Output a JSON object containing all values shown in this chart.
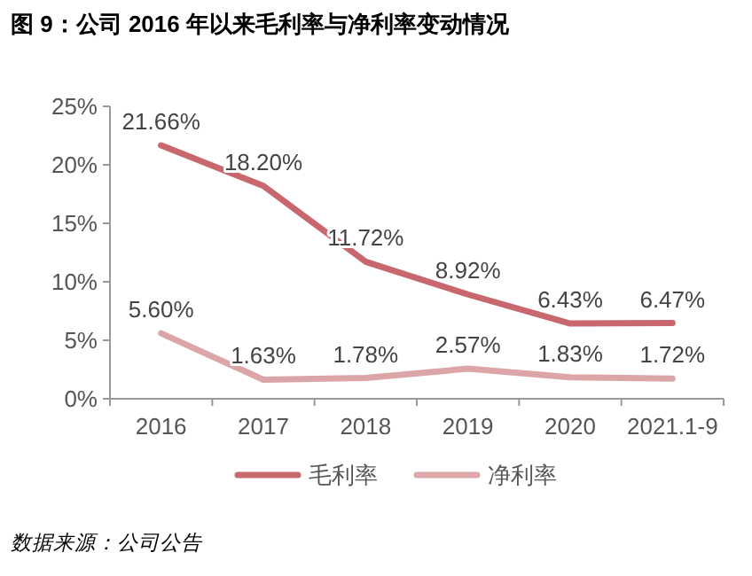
{
  "chart_data": {
    "type": "line",
    "title": "图 9：公司 2016 年以来毛利率与净利率变动情况",
    "categories": [
      "2016",
      "2017",
      "2018",
      "2019",
      "2020",
      "2021.1-9"
    ],
    "series": [
      {
        "name": "毛利率",
        "color": "#c8676d",
        "values": [
          21.66,
          18.2,
          11.72,
          8.92,
          6.43,
          6.47
        ],
        "value_labels": [
          "21.66%",
          "18.20%",
          "11.72%",
          "8.92%",
          "6.43%",
          "6.47%"
        ]
      },
      {
        "name": "净利率",
        "color": "#dca5a8",
        "values": [
          5.6,
          1.63,
          1.78,
          2.57,
          1.83,
          1.72
        ],
        "value_labels": [
          "5.60%",
          "1.63%",
          "1.78%",
          "2.57%",
          "1.83%",
          "1.72%"
        ]
      }
    ],
    "ylim": [
      0,
      25
    ],
    "yticks": [
      {
        "value": 0,
        "label": "0%"
      },
      {
        "value": 5,
        "label": "5%"
      },
      {
        "value": 10,
        "label": "10%"
      },
      {
        "value": 15,
        "label": "15%"
      },
      {
        "value": 20,
        "label": "20%"
      },
      {
        "value": 25,
        "label": "25%"
      }
    ],
    "legend": "bottom",
    "marker": "none",
    "line_style": "solid",
    "grid": false,
    "annotations": [
      "数据来源：公司公告"
    ]
  }
}
